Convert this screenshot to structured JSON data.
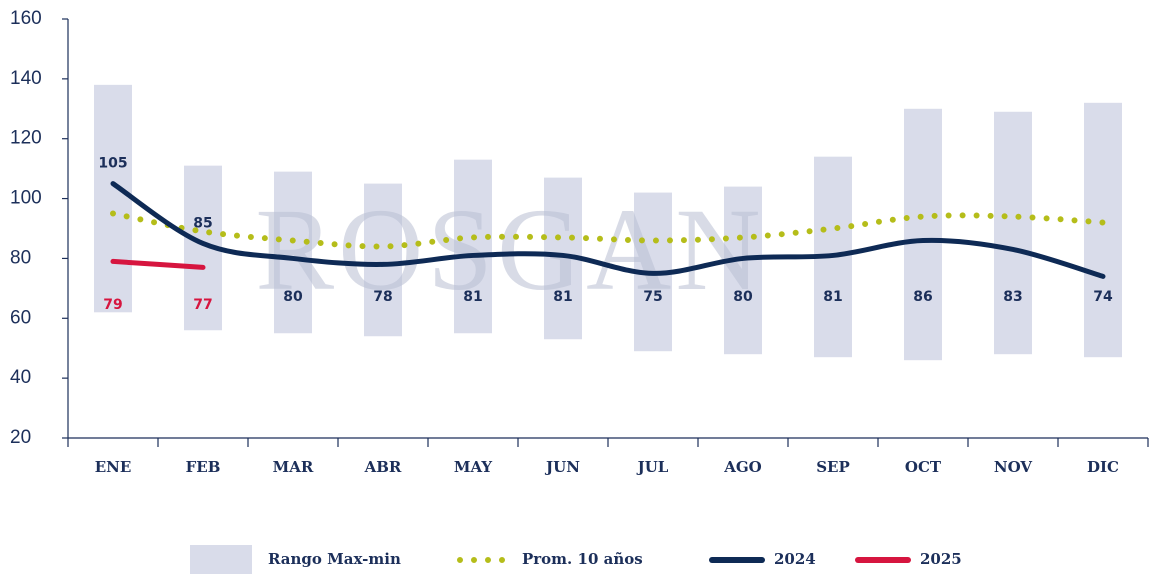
{
  "chart_data": {
    "type": "line",
    "watermark": "ROSGAN",
    "categories": [
      "ENE",
      "FEB",
      "MAR",
      "ABR",
      "MAY",
      "JUN",
      "JUL",
      "AGO",
      "SEP",
      "OCT",
      "NOV",
      "DIC"
    ],
    "ylim": [
      20,
      160
    ],
    "yticks": [
      20,
      40,
      60,
      80,
      100,
      120,
      140,
      160
    ],
    "legend": "bottom",
    "series": [
      {
        "name": "Rango Max-min",
        "kind": "range",
        "color": "#d9dcea",
        "high": [
          138,
          111,
          109,
          105,
          113,
          107,
          102,
          104,
          114,
          130,
          129,
          132
        ],
        "low": [
          62,
          56,
          55,
          54,
          55,
          53,
          49,
          48,
          47,
          46,
          48,
          47
        ]
      },
      {
        "name": "Prom. 10 años",
        "kind": "dotted",
        "color": "#b5bd1a",
        "values": [
          95,
          89,
          86,
          84,
          87,
          87,
          86,
          87,
          90,
          94,
          94,
          92
        ]
      },
      {
        "name": "2024",
        "kind": "line",
        "color": "#0e2a55",
        "values": [
          105,
          85,
          80,
          78,
          81,
          81,
          75,
          80,
          81,
          86,
          83,
          74
        ]
      },
      {
        "name": "2025",
        "kind": "line",
        "color": "#d6153f",
        "values": [
          79,
          77,
          null,
          null,
          null,
          null,
          null,
          null,
          null,
          null,
          null,
          null
        ]
      }
    ]
  }
}
